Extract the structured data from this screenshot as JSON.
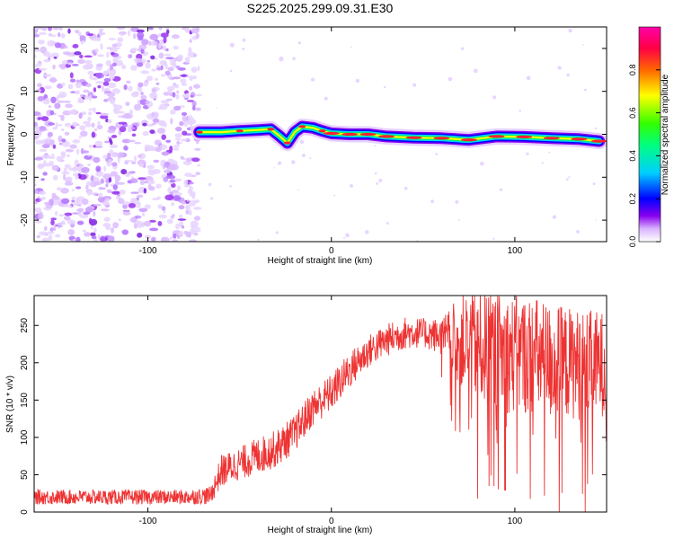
{
  "title": "S225.2025.299.09.31.E30",
  "colors": {
    "line": "#ee3333",
    "axis": "#000000",
    "colorbar": [
      "#ffffff",
      "#d9b3ff",
      "#8800ee",
      "#0000ff",
      "#00cfff",
      "#00ff00",
      "#ffff00",
      "#ff6600",
      "#ff0044",
      "#ff00aa"
    ]
  },
  "chart_data": [
    {
      "type": "heatmap",
      "xlabel": "Height of straight line (km)",
      "ylabel": "Frequency (Hz)",
      "xlim": [
        -162,
        150
      ],
      "ylim": [
        -25,
        25
      ],
      "x_ticks": [
        -100,
        0,
        100
      ],
      "x_tick_labels": [
        "-100",
        "0",
        "100"
      ],
      "y_ticks": [
        20,
        10,
        0,
        -10,
        -20
      ],
      "y_tick_labels": [
        "20",
        "10",
        "0",
        "-10",
        "-20"
      ],
      "colorbar": {
        "label": "Normalized spectral amplitude",
        "range": [
          0,
          1
        ],
        "ticks": [
          0.0,
          0.2,
          0.4,
          0.6,
          0.8
        ],
        "tick_labels": [
          "0.0",
          "0.2",
          "0.4",
          "0.6",
          "0.8"
        ]
      },
      "noise_region": {
        "x_from": -162,
        "x_to": -72,
        "level": "low (0.05-0.15)"
      },
      "ridge": {
        "x": [
          -72,
          -60,
          -50,
          -40,
          -33,
          -28,
          -24,
          -20,
          -16,
          -10,
          -5,
          0,
          10,
          20,
          30,
          45,
          60,
          75,
          90,
          105,
          120,
          135,
          146
        ],
        "freq_hz": [
          0.5,
          0.5,
          0.8,
          1.0,
          1.2,
          -0.5,
          -2.0,
          0.5,
          1.8,
          1.5,
          0.8,
          0.2,
          0.0,
          0.0,
          -0.5,
          -0.8,
          -0.9,
          -1.3,
          -0.5,
          -0.6,
          -0.9,
          -1.1,
          -1.6
        ]
      }
    },
    {
      "type": "line",
      "xlabel": "Height of straight line (km)",
      "ylabel": "SNR (10 * v/v)",
      "xlim": [
        -162,
        150
      ],
      "ylim": [
        0,
        290
      ],
      "x_ticks": [
        -100,
        0,
        100
      ],
      "x_tick_labels": [
        "-100",
        "0",
        "100"
      ],
      "y_ticks": [
        0,
        50,
        100,
        150,
        200,
        250
      ],
      "y_tick_labels": [
        "0",
        "50",
        "100",
        "150",
        "200",
        "250"
      ],
      "series": [
        {
          "name": "SNR",
          "trend_x": [
            -162,
            -140,
            -120,
            -100,
            -80,
            -66,
            -60,
            -50,
            -40,
            -30,
            -20,
            -10,
            0,
            10,
            20,
            30,
            40,
            50,
            60,
            70,
            80,
            90,
            100,
            110,
            120,
            130,
            140,
            150
          ],
          "trend_y": [
            20,
            20,
            20,
            20,
            20,
            22,
            55,
            65,
            75,
            85,
            105,
            140,
            160,
            190,
            215,
            230,
            240,
            240,
            235,
            230,
            222,
            215,
            210,
            210,
            200,
            200,
            195,
            200
          ],
          "noise_amplitude_y": [
            10,
            10,
            10,
            10,
            10,
            12,
            22,
            22,
            25,
            25,
            25,
            25,
            25,
            25,
            22,
            22,
            22,
            20,
            25,
            60,
            75,
            80,
            80,
            80,
            80,
            75,
            75,
            70
          ]
        }
      ]
    }
  ]
}
